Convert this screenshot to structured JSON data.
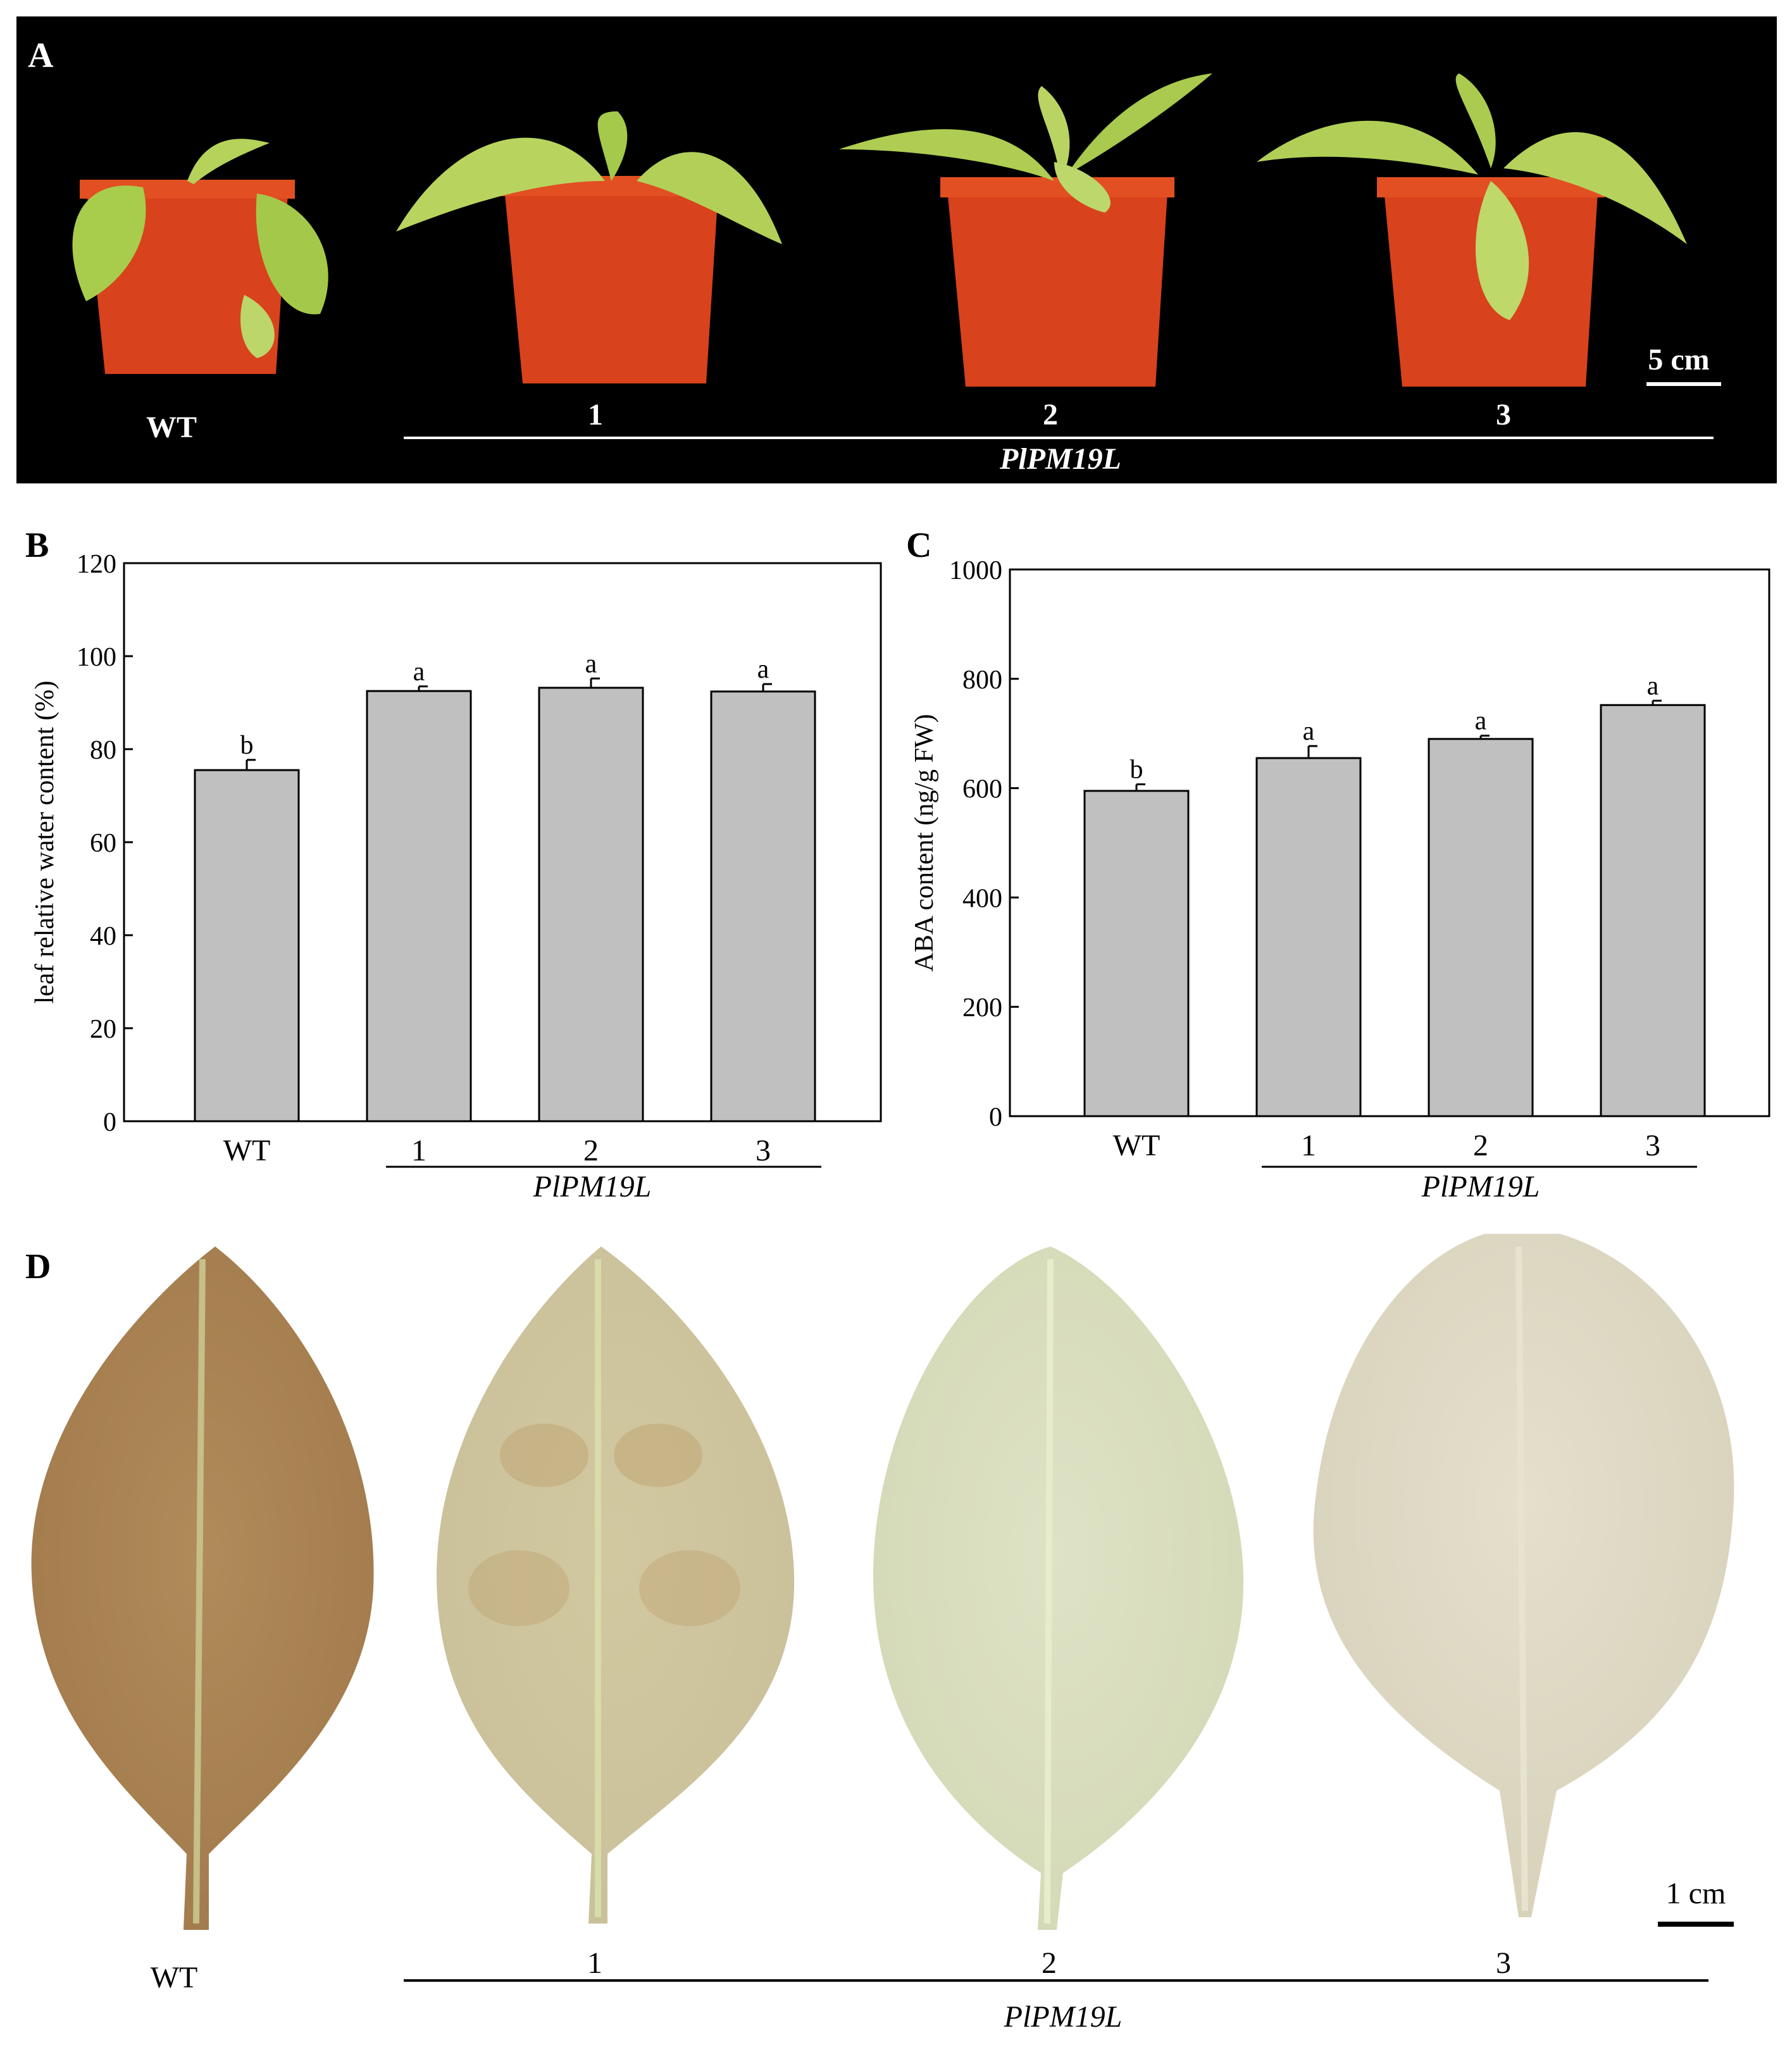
{
  "panelA": {
    "letter": "A",
    "wt_label": "WT",
    "line_labels": [
      "1",
      "2",
      "3"
    ],
    "group_label": "PlPM19L",
    "scale_label": "5 cm"
  },
  "panelB": {
    "letter": "B",
    "group_label": "PlPM19L"
  },
  "panelC": {
    "letter": "C",
    "group_label": "PlPM19L"
  },
  "panelD": {
    "letter": "D",
    "wt_label": "WT",
    "line_labels": [
      "1",
      "2",
      "3"
    ],
    "group_label": "PlPM19L",
    "scale_label": "1 cm"
  },
  "chart_data": [
    {
      "type": "bar",
      "panel": "B",
      "categories": [
        "WT",
        "1",
        "2",
        "3"
      ],
      "values": [
        75.5,
        92.5,
        93.2,
        92.4
      ],
      "errors": [
        2.2,
        1.0,
        2.0,
        1.6
      ],
      "significance": [
        "b",
        "a",
        "a",
        "a"
      ],
      "ylabel": "leaf relative water content (%)",
      "ylim": [
        0,
        120
      ],
      "yticks": [
        0,
        20,
        40,
        60,
        80,
        100,
        120
      ],
      "bar_color": "#c0c0c0"
    },
    {
      "type": "bar",
      "panel": "C",
      "categories": [
        "WT",
        "1",
        "2",
        "3"
      ],
      "values": [
        595,
        655,
        690,
        752
      ],
      "errors": [
        12,
        22,
        6,
        8
      ],
      "significance": [
        "b",
        "a",
        "a",
        "a"
      ],
      "ylabel": "ABA content (ng/g FW)",
      "ylim": [
        0,
        1000
      ],
      "yticks": [
        0,
        200,
        400,
        600,
        800,
        1000
      ],
      "bar_color": "#c0c0c0"
    }
  ]
}
